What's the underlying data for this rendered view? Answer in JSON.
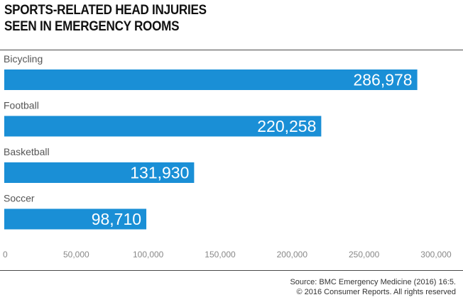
{
  "header": {
    "title_line1": "SPORTS-RELATED HEAD INJURIES",
    "title_line2": "SEEN IN EMERGENCY ROOMS"
  },
  "chart_data": {
    "type": "bar",
    "orientation": "horizontal",
    "title": "SPORTS-RELATED HEAD INJURIES SEEN IN EMERGENCY ROOMS",
    "categories": [
      "Bicycling",
      "Football",
      "Basketball",
      "Soccer"
    ],
    "values": [
      286978,
      220258,
      131930,
      98710
    ],
    "value_labels": [
      "286,978",
      "220,258",
      "131,930",
      "98,710"
    ],
    "xlim": [
      0,
      300000
    ],
    "x_ticks": [
      0,
      50000,
      100000,
      150000,
      200000,
      250000,
      300000
    ],
    "x_tick_labels": [
      "0",
      "50,000",
      "100,000",
      "150,000",
      "200,000",
      "250,000",
      "300,000"
    ],
    "xlabel": "",
    "ylabel": "",
    "grid": false,
    "legend": "none",
    "bar_color": "#1a8fd6",
    "label_color": "#ffffff",
    "category_label_color": "#555555",
    "tick_label_color": "#888888"
  },
  "footer": {
    "source_line": "Source: BMC Emergency Medicine (2016) 16:5.",
    "copyright_line": "© 2016 Consumer Reports. All rights reserved"
  }
}
